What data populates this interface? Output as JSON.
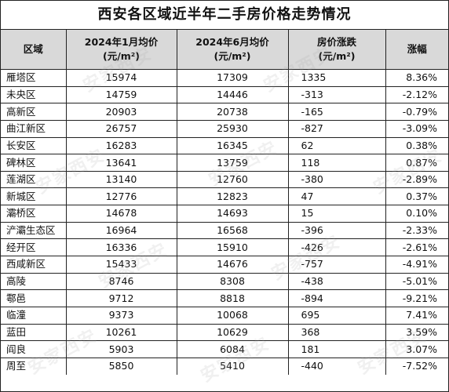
{
  "title": "西安各区域近半年二手房价格走势情况",
  "watermark": "安家西安",
  "headers": {
    "region": "区域",
    "jan_line1": "2024年1月均价",
    "jan_line2": "(元/m²)",
    "jun_line1": "2024年6月均价",
    "jun_line2": "(元/m²)",
    "change_line1": "房价涨跌",
    "change_line2": "(元/m²)",
    "pct": "涨幅"
  },
  "rows": [
    {
      "region": "雁塔区",
      "jan": "15974",
      "jun": "17309",
      "change": "1335",
      "pct": "8.36%"
    },
    {
      "region": "未央区",
      "jan": "14759",
      "jun": "14446",
      "change": "-313",
      "pct": "-2.12%"
    },
    {
      "region": "高新区",
      "jan": "20903",
      "jun": "20738",
      "change": "-165",
      "pct": "-0.79%"
    },
    {
      "region": "曲江新区",
      "jan": "26757",
      "jun": "25930",
      "change": "-827",
      "pct": "-3.09%"
    },
    {
      "region": "长安区",
      "jan": "16283",
      "jun": "16345",
      "change": "62",
      "pct": "0.38%"
    },
    {
      "region": "碑林区",
      "jan": "13641",
      "jun": "13759",
      "change": "118",
      "pct": "0.87%"
    },
    {
      "region": "莲湖区",
      "jan": "13140",
      "jun": "12760",
      "change": "-380",
      "pct": "-2.89%"
    },
    {
      "region": "新城区",
      "jan": "12776",
      "jun": "12823",
      "change": "47",
      "pct": "0.37%"
    },
    {
      "region": "灞桥区",
      "jan": "14678",
      "jun": "14693",
      "change": "15",
      "pct": "0.10%"
    },
    {
      "region": "浐灞生态区",
      "jan": "16964",
      "jun": "16568",
      "change": "-396",
      "pct": "-2.33%"
    },
    {
      "region": "经开区",
      "jan": "16336",
      "jun": "15910",
      "change": "-426",
      "pct": "-2.61%"
    },
    {
      "region": "西咸新区",
      "jan": "15433",
      "jun": "14676",
      "change": "-757",
      "pct": "-4.91%"
    },
    {
      "region": "高陵",
      "jan": "8746",
      "jun": "8308",
      "change": "-438",
      "pct": "-5.01%"
    },
    {
      "region": "鄠邑",
      "jan": "9712",
      "jun": "8818",
      "change": "-894",
      "pct": "-9.21%"
    },
    {
      "region": "临潼",
      "jan": "9373",
      "jun": "10068",
      "change": "695",
      "pct": "7.41%"
    },
    {
      "region": "蓝田",
      "jan": "10261",
      "jun": "10629",
      "change": "368",
      "pct": "3.59%"
    },
    {
      "region": "阎良",
      "jan": "5903",
      "jun": "6084",
      "change": "181",
      "pct": "3.07%"
    },
    {
      "region": "周至",
      "jan": "5850",
      "jun": "5410",
      "change": "-440",
      "pct": "-7.52%"
    }
  ]
}
